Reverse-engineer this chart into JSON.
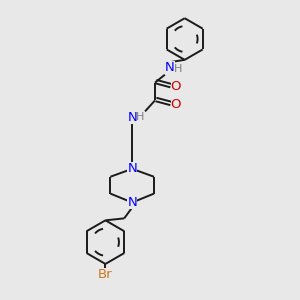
{
  "background_color": "#e8e8e8",
  "bond_color": "#1a1a1a",
  "N_color": "#0000ff",
  "O_color": "#cc0000",
  "Br_color": "#cc7722",
  "H_color": "#808080",
  "figsize": [
    3.0,
    3.0
  ],
  "dpi": 100,
  "xlim": [
    0,
    300
  ],
  "ylim": [
    0,
    300
  ]
}
